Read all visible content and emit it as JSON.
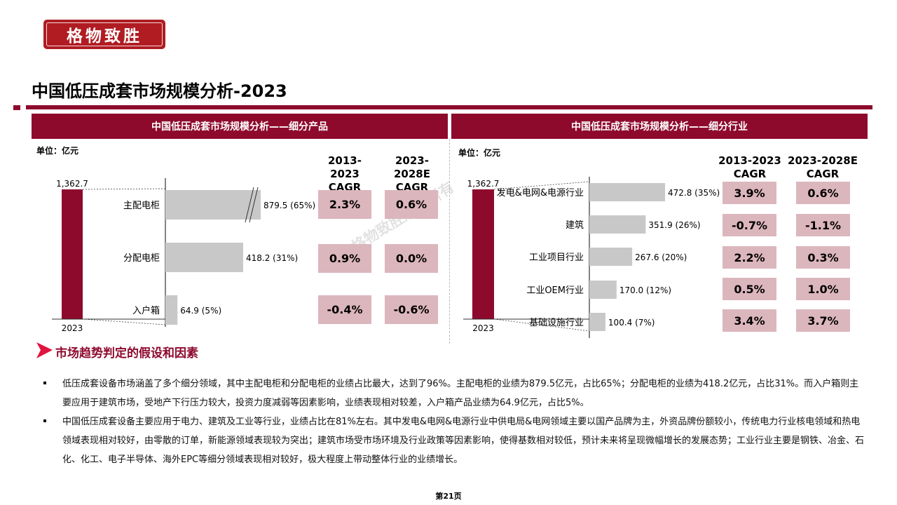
{
  "logo": {
    "text": "格物致胜"
  },
  "page_title": "中国低压成套市场规模分析-2023",
  "watermark": "格物致胜版权所有",
  "colors": {
    "brand": "#8e0a2d",
    "bar": "#c8c8c8",
    "cagr_box": "#dcb6bd",
    "trend_arrow": "#e0153f"
  },
  "left_panel": {
    "header": "中国低压成套市场规模分析——细分产品",
    "unit": "单位：亿元",
    "cagr_headers": [
      {
        "years": "2013-2023",
        "label": "CAGR"
      },
      {
        "years": "2023-2028E",
        "label": "CAGR"
      }
    ],
    "cagr_values": [
      {
        "a": "2.3%",
        "b": "0.6%"
      },
      {
        "a": "0.9%",
        "b": "0.0%"
      },
      {
        "a": "-0.4%",
        "b": "-0.6%"
      }
    ]
  },
  "right_panel": {
    "header": "中国低压成套市场规模分析——细分行业",
    "unit": "单位：亿元",
    "cagr_headers": [
      {
        "years": "2013-2023",
        "label": "CAGR"
      },
      {
        "years": "2023-2028E",
        "label": "CAGR"
      }
    ],
    "cagr_values": [
      {
        "a": "3.9%",
        "b": "0.6%"
      },
      {
        "a": "-0.7%",
        "b": "-1.1%"
      },
      {
        "a": "2.2%",
        "b": "0.3%"
      },
      {
        "a": "0.5%",
        "b": "1.0%"
      },
      {
        "a": "3.4%",
        "b": "3.7%"
      }
    ]
  },
  "chart_data": [
    {
      "type": "bar",
      "orientation": "horizontal",
      "total": {
        "category": "2023",
        "value": 1362.7,
        "label": "1,362.7"
      },
      "categories": [
        "主配电柜",
        "分配电柜",
        "入户箱"
      ],
      "values": [
        879.5,
        418.2,
        64.9
      ],
      "shares": [
        "65%",
        "31%",
        "5%"
      ],
      "data_labels": [
        "879.5 (65%)",
        "418.2 (31%)",
        "64.9 (5%)"
      ],
      "axis_break_on_first_bar": true
    },
    {
      "type": "bar",
      "orientation": "horizontal",
      "total": {
        "category": "2023",
        "value": 1362.7,
        "label": "1,362.7"
      },
      "categories": [
        "发电&电网&电源行业",
        "建筑",
        "工业项目行业",
        "工业OEM行业",
        "基础设施行业"
      ],
      "values": [
        472.8,
        351.9,
        267.6,
        170.0,
        100.4
      ],
      "shares": [
        "35%",
        "26%",
        "20%",
        "12%",
        "7%"
      ],
      "data_labels": [
        "472.8 (35%)",
        "351.9 (26%)",
        "267.6 (20%)",
        "170.0 (12%)",
        "100.4 (7%)"
      ]
    }
  ],
  "trend": {
    "heading": "市场趋势判定的假设和因素",
    "bullets": [
      "低压成套设备市场涵盖了多个细分领域，其中主配电柜和分配电柜的业绩占比最大，达到了96%。主配电柜的业绩为879.5亿元，占比65%；分配电柜的业绩为418.2亿元，占比31%。而入户箱则主要应用于建筑市场，受地产下行压力较大，投资力度减弱等因素影响，业绩表现相对较差，入户箱产品业绩为64.9亿元，占比5%。",
      "中国低压成套设备主要应用于电力、建筑及工业等行业，业绩占比在81%左右。其中发电&电网&电源行业中供电局&电网领域主要以国产品牌为主，外资品牌份额较小，传统电力行业核电领域和热电领域表现相对较好，由零散的订单，新能源领域表现较为突出；建筑市场受市场环境及行业政策等因素影响，使得基数相对较低，预计未来将呈现微幅增长的发展态势；工业行业主要是钢铁、冶金、石化、化工、电子半导体、海外EPC等细分领域表现相对较好，极大程度上带动整体行业的业绩增长。"
    ]
  },
  "page_number": "第21页"
}
